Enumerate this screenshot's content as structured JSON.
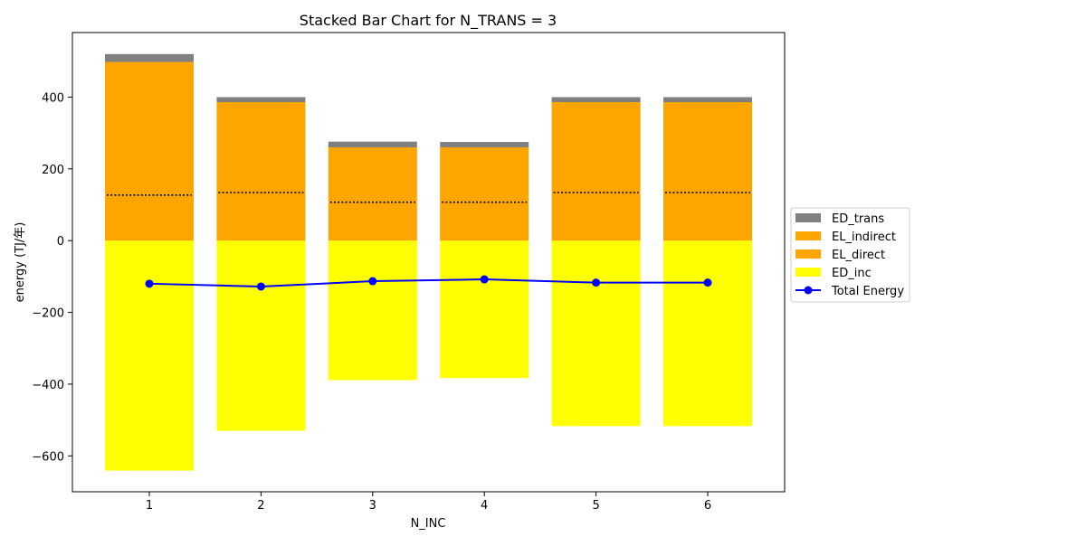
{
  "chart_data": {
    "type": "bar",
    "title": "Stacked Bar Chart for N_TRANS = 3",
    "xlabel": "N_INC",
    "ylabel": "energy (TJ/年)",
    "categories": [
      "1",
      "2",
      "3",
      "4",
      "5",
      "6"
    ],
    "ylim": [
      -700,
      580
    ],
    "yticks": [
      -600,
      -400,
      -200,
      0,
      200,
      400
    ],
    "ytick_labels": [
      "−600",
      "−400",
      "−200",
      "0",
      "200",
      "400"
    ],
    "grid": false,
    "legend_position": "right",
    "series": [
      {
        "name": "ED_inc",
        "color": "#ffff00",
        "values": [
          -641,
          -530,
          -389,
          -383,
          -517,
          -517
        ]
      },
      {
        "name": "EL_direct",
        "color": "#ffa500",
        "values": [
          127,
          134,
          107,
          107,
          134,
          134
        ]
      },
      {
        "name": "EL_indirect",
        "color": "#ffa500",
        "values": [
          371,
          252,
          153,
          153,
          252,
          252
        ]
      },
      {
        "name": "ED_trans",
        "color": "#808080",
        "values": [
          22,
          14,
          16,
          15,
          14,
          14
        ]
      }
    ],
    "line": {
      "name": "Total Energy",
      "color": "#0000ff",
      "values": [
        -120,
        -128,
        -113,
        -108,
        -117,
        -117
      ]
    },
    "legend_order": [
      "ED_trans",
      "EL_indirect",
      "EL_direct",
      "ED_inc",
      "Total Energy"
    ]
  }
}
